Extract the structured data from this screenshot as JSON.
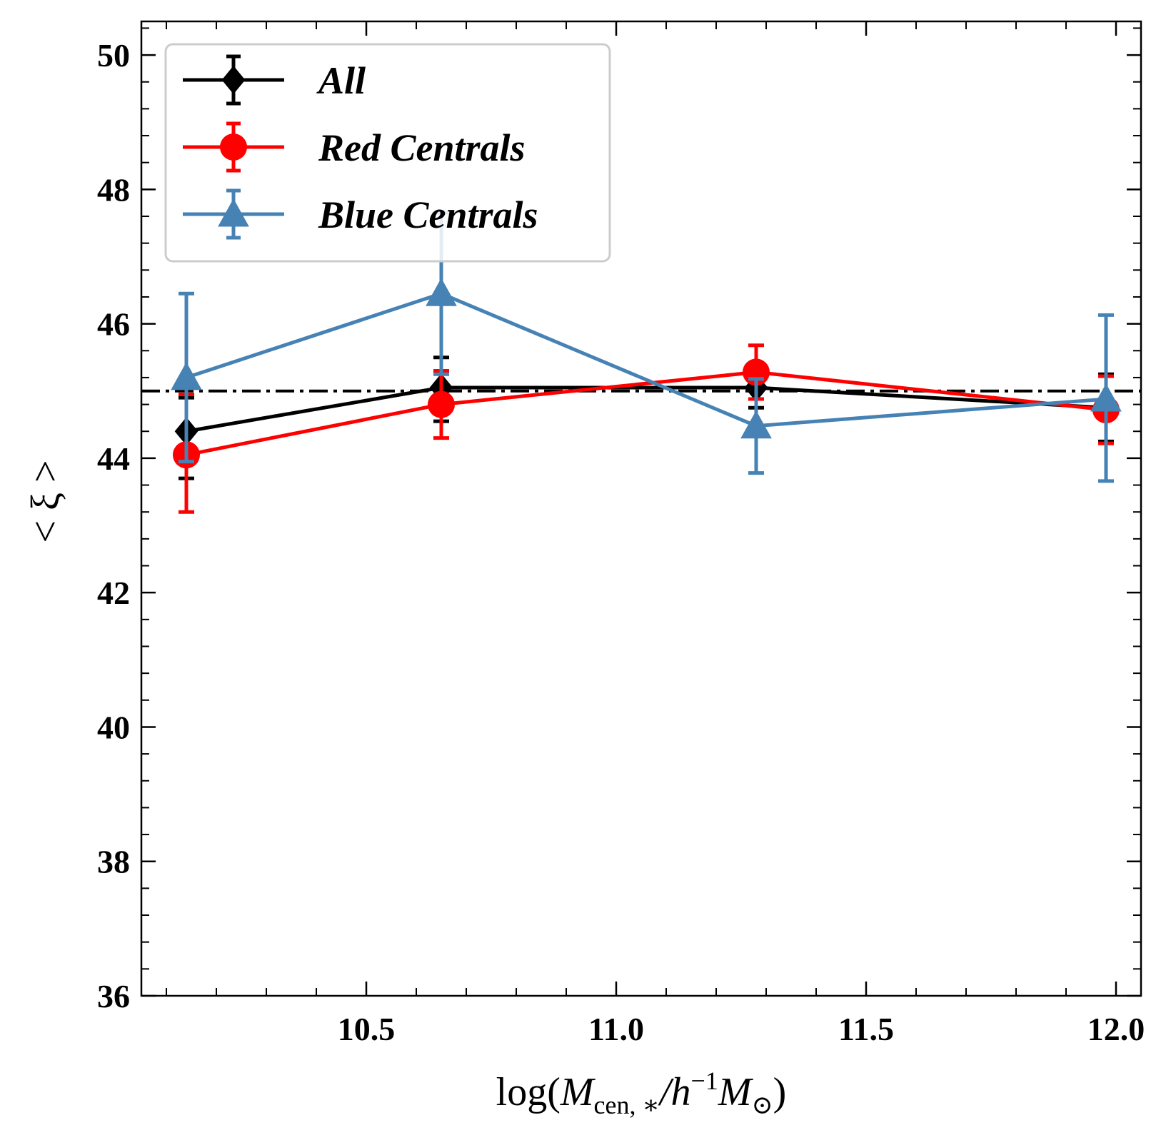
{
  "chart_data": {
    "type": "line",
    "title": "",
    "xlabel": {
      "prefix": "log(",
      "var": "M",
      "sub": "cen, ∗",
      "mid": "/",
      "var2": "h",
      "sup": "−1",
      "var3": "M",
      "sub2": "⊙",
      "suffix": ")"
    },
    "ylabel": "< ξ >",
    "xlim": [
      10.05,
      12.05
    ],
    "ylim": [
      36,
      50.5
    ],
    "xticks": [
      10.5,
      11.0,
      11.5,
      12.0
    ],
    "xtick_labels": [
      "10.5",
      "11.0",
      "11.5",
      "12.0"
    ],
    "yticks": [
      36,
      38,
      40,
      42,
      44,
      46,
      48,
      50
    ],
    "ytick_labels": [
      "36",
      "38",
      "40",
      "42",
      "44",
      "46",
      "48",
      "50"
    ],
    "reference_line": {
      "y": 45.0,
      "style": "dashdot",
      "color": "#000000"
    },
    "legend_position": "top-left",
    "series": [
      {
        "name": "All",
        "color": "#000000",
        "marker": "diamond",
        "x": [
          10.14,
          10.65,
          11.28,
          11.98
        ],
        "y": [
          44.4,
          45.05,
          45.05,
          44.75
        ],
        "yerr_low": [
          0.7,
          0.5,
          0.3,
          0.5
        ],
        "yerr_high": [
          0.5,
          0.45,
          0.25,
          0.5
        ]
      },
      {
        "name": "Red Centrals",
        "color": "#ff0000",
        "marker": "circle",
        "x": [
          10.14,
          10.65,
          11.28,
          11.98
        ],
        "y": [
          44.05,
          44.8,
          45.28,
          44.72
        ],
        "yerr_low": [
          0.85,
          0.5,
          0.4,
          0.5
        ],
        "yerr_high": [
          0.9,
          0.5,
          0.4,
          0.5
        ]
      },
      {
        "name": "Blue Centrals",
        "color": "#4682b4",
        "marker": "triangle",
        "x": [
          10.14,
          10.65,
          11.28,
          11.98
        ],
        "y": [
          45.2,
          46.45,
          44.48,
          44.88
        ],
        "yerr_low": [
          1.25,
          1.2,
          0.7,
          1.22
        ],
        "yerr_high": [
          1.25,
          1.2,
          0.7,
          1.25
        ]
      }
    ]
  }
}
